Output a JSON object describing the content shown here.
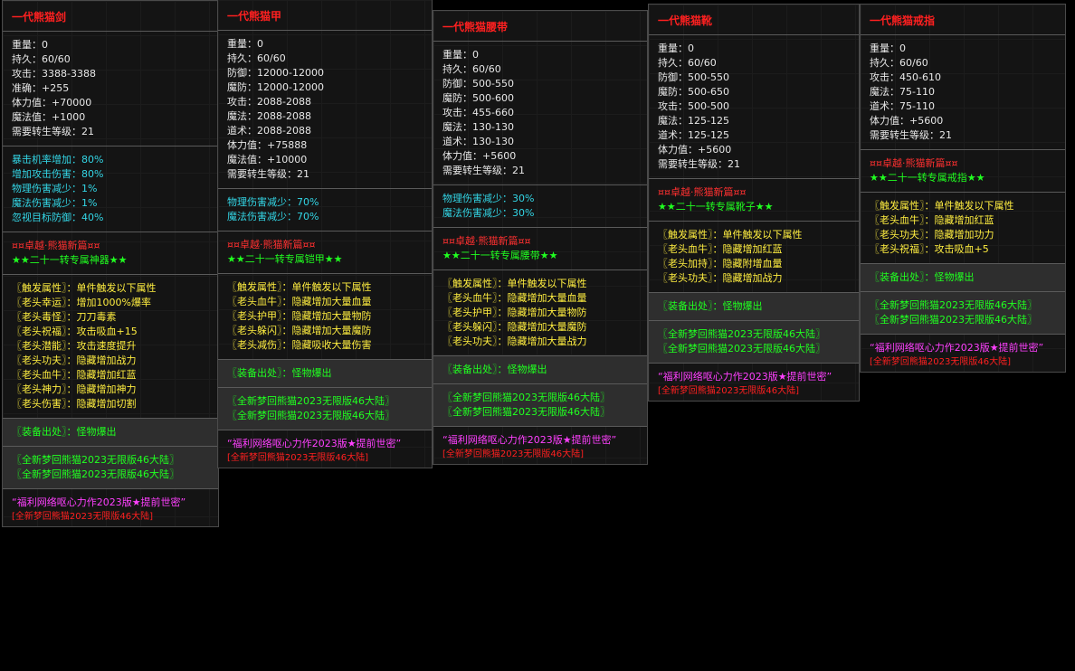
{
  "panels": [
    {
      "title": "一代熊猫剑",
      "stats": [
        "重量：0",
        "持久：60/60",
        "攻击：3388-3388",
        "准确：+255",
        "体力值：+70000",
        "魔法值：+1000",
        "需要转生等级：21"
      ],
      "bonus": [
        "暴击机率增加：80%",
        "增加攻击伤害：80%",
        "物理伤害减少：1%",
        "魔法伤害减少：1%",
        "忽视目标防御：40%"
      ],
      "set_name": "¤¤卓越·熊猫新篇¤¤",
      "set_tag": "★★二十一转专属神器★★",
      "traits": [
        "〖触发属性〗：单件触发以下属性",
        "〖老头幸运〗：增加1000%爆率",
        "〖老头毒怪〗：刀刀毒素",
        "〖老头祝福〗：攻击吸血+15",
        "〖老头潜能〗：攻击速度提升",
        "〖老头功夫〗：隐藏增加战力",
        "〖老头血牛〗：隐藏增加红蓝",
        "〖老头神力〗：隐藏增加神力",
        "〖老头伤害〗：隐藏增加切割"
      ],
      "source": "〖装备出处〗：怪物爆出",
      "lands": [
        "〖全新梦回熊猫2023无限版46大陆〗",
        "〖全新梦回熊猫2023无限版46大陆〗"
      ],
      "slogan": "“福利网络呕心力作2023版★提前世密”",
      "footer": "[全新梦回熊猫2023无限版46大陆]"
    },
    {
      "title": "一代熊猫甲",
      "stats": [
        "重量：0",
        "持久：60/60",
        "防御：12000-12000",
        "魔防：12000-12000",
        "攻击：2088-2088",
        "魔法：2088-2088",
        "道术：2088-2088",
        "体力值：+75888",
        "魔法值：+10000",
        "需要转生等级：21"
      ],
      "bonus": [
        "物理伤害减少：70%",
        "魔法伤害减少：70%"
      ],
      "set_name": "¤¤卓越·熊猫新篇¤¤",
      "set_tag": "★★二十一转专属铠甲★★",
      "traits": [
        "〖触发属性〗：单件触发以下属性",
        "〖老头血牛〗：隐藏增加大量血量",
        "〖老头护甲〗：隐藏增加大量物防",
        "〖老头躲闪〗：隐藏增加大量魔防",
        "〖老头减伤〗：隐藏吸收大量伤害"
      ],
      "source": "〖装备出处〗：怪物爆出",
      "lands": [
        "〖全新梦回熊猫2023无限版46大陆〗",
        "〖全新梦回熊猫2023无限版46大陆〗"
      ],
      "slogan": "“福利网络呕心力作2023版★提前世密”",
      "footer": "[全新梦回熊猫2023无限版46大陆]"
    },
    {
      "title": "一代熊猫腰带",
      "stats": [
        "重量：0",
        "持久：60/60",
        "防御：500-550",
        "魔防：500-600",
        "攻击：455-660",
        "魔法：130-130",
        "道术：130-130",
        "体力值：+5600",
        "需要转生等级：21"
      ],
      "bonus": [
        "物理伤害减少：30%",
        "魔法伤害减少：30%"
      ],
      "set_name": "¤¤卓越·熊猫新篇¤¤",
      "set_tag": "★★二十一转专属腰带★★",
      "traits": [
        "〖触发属性〗：单件触发以下属性",
        "〖老头血牛〗：隐藏增加大量血量",
        "〖老头护甲〗：隐藏增加大量物防",
        "〖老头躲闪〗：隐藏增加大量魔防",
        "〖老头功夫〗：隐藏增加大量战力"
      ],
      "source": "〖装备出处〗：怪物爆出",
      "lands": [
        "〖全新梦回熊猫2023无限版46大陆〗",
        "〖全新梦回熊猫2023无限版46大陆〗"
      ],
      "slogan": "“福利网络呕心力作2023版★提前世密”",
      "footer": "[全新梦回熊猫2023无限版46大陆]"
    },
    {
      "title": "一代熊猫靴",
      "stats": [
        "重量：0",
        "持久：60/60",
        "防御：500-550",
        "魔防：500-650",
        "攻击：500-500",
        "魔法：125-125",
        "道术：125-125",
        "体力值：+5600",
        "需要转生等级：21"
      ],
      "set_name": "¤¤卓越·熊猫新篇¤¤",
      "set_tag": "★★二十一转专属靴子★★",
      "traits": [
        "〖触发属性〗：单件触发以下属性",
        "〖老头血牛〗：隐藏增加红蓝",
        "〖老头加持〗：隐藏附增血量",
        "〖老头功夫〗：隐藏增加战力"
      ],
      "source": "〖装备出处〗：怪物爆出",
      "lands": [
        "〖全新梦回熊猫2023无限版46大陆〗",
        "〖全新梦回熊猫2023无限版46大陆〗"
      ],
      "slogan": "“福利网络呕心力作2023版★提前世密”",
      "footer": "[全新梦回熊猫2023无限版46大陆]"
    },
    {
      "title": "一代熊猫戒指",
      "stats": [
        "重量：0",
        "持久：60/60",
        "攻击：450-610",
        "魔法：75-110",
        "道术：75-110",
        "体力值：+5600",
        "需要转生等级：21"
      ],
      "set_name": "¤¤卓越·熊猫新篇¤¤",
      "set_tag": "★★二十一转专属戒指★★",
      "traits": [
        "〖触发属性〗：单件触发以下属性",
        "〖老头血牛〗：隐藏增加红蓝",
        "〖老头功夫〗：隐藏增加功力",
        "〖老头祝福〗：攻击吸血+5"
      ],
      "source": "〖装备出处〗：怪物爆出",
      "lands": [
        "〖全新梦回熊猫2023无限版46大陆〗",
        "〖全新梦回熊猫2023无限版46大陆〗"
      ],
      "slogan": "“福利网络呕心力作2023版★提前世密”",
      "footer": "[全新梦回熊猫2023无限版46大陆]"
    }
  ]
}
